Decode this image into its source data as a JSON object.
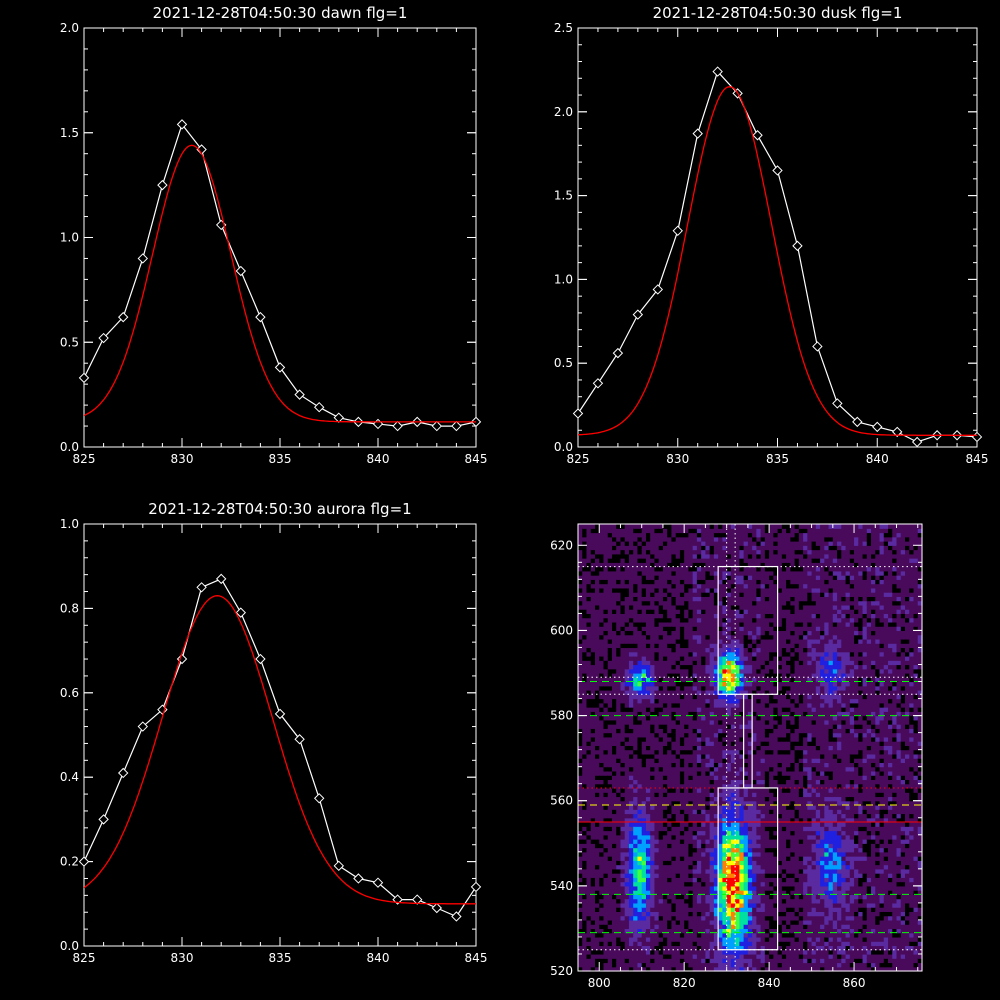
{
  "chart_data": [
    {
      "type": "line",
      "title": "2021-12-28T04:50:30 dawn flg=1",
      "xlim": [
        825,
        845
      ],
      "ylim": [
        0,
        2.0
      ],
      "xticks": [
        825,
        830,
        835,
        840,
        845
      ],
      "xtick_labels": [
        "825",
        "830",
        "835",
        "840",
        "845"
      ],
      "yticks": [
        0,
        0.5,
        1.0,
        1.5,
        2.0
      ],
      "ytick_labels": [
        "0.0",
        "0.5",
        "1.0",
        "1.5",
        "2.0"
      ],
      "series": [
        {
          "color": "#ffffff",
          "marker": "diamond",
          "x": [
            825,
            826,
            827,
            828,
            829,
            830,
            831,
            832,
            833,
            834,
            835,
            836,
            837,
            838,
            839,
            840,
            841,
            842,
            843,
            844,
            845
          ],
          "y": [
            0.33,
            0.52,
            0.62,
            0.9,
            1.25,
            1.54,
            1.42,
            1.06,
            0.84,
            0.62,
            0.38,
            0.25,
            0.19,
            0.14,
            0.12,
            0.11,
            0.1,
            0.12,
            0.1,
            0.1,
            0.12
          ]
        },
        {
          "color": "#ff0000",
          "marker": "none",
          "fit": "gaussian",
          "params": {
            "amp": 1.32,
            "center": 830.5,
            "sigma": 2.0,
            "offset": 0.12
          }
        }
      ]
    },
    {
      "type": "line",
      "title": "2021-12-28T04:50:30 dusk flg=1",
      "xlim": [
        825,
        845
      ],
      "ylim": [
        0,
        2.5
      ],
      "xticks": [
        825,
        830,
        835,
        840,
        845
      ],
      "xtick_labels": [
        "825",
        "830",
        "835",
        "840",
        "845"
      ],
      "yticks": [
        0,
        0.5,
        1.0,
        1.5,
        2.0,
        2.5
      ],
      "ytick_labels": [
        "0.0",
        "0.5",
        "1.0",
        "1.5",
        "2.0",
        "2.5"
      ],
      "series": [
        {
          "color": "#ffffff",
          "marker": "diamond",
          "x": [
            825,
            826,
            827,
            828,
            829,
            830,
            831,
            832,
            833,
            834,
            835,
            836,
            837,
            838,
            839,
            840,
            841,
            842,
            843,
            844,
            845
          ],
          "y": [
            0.2,
            0.38,
            0.56,
            0.79,
            0.94,
            1.29,
            1.87,
            2.24,
            2.11,
            1.86,
            1.65,
            1.2,
            0.6,
            0.26,
            0.15,
            0.12,
            0.09,
            0.03,
            0.07,
            0.07,
            0.06
          ]
        },
        {
          "color": "#ff0000",
          "marker": "none",
          "fit": "gaussian",
          "params": {
            "amp": 2.08,
            "center": 832.6,
            "sigma": 2.1,
            "offset": 0.07
          }
        }
      ]
    },
    {
      "type": "line",
      "title": "2021-12-28T04:50:30 aurora flg=1",
      "xlim": [
        825,
        845
      ],
      "ylim": [
        0,
        1.0
      ],
      "xticks": [
        825,
        830,
        835,
        840,
        845
      ],
      "xtick_labels": [
        "825",
        "830",
        "835",
        "840",
        "845"
      ],
      "yticks": [
        0,
        0.2,
        0.4,
        0.6,
        0.8,
        1.0
      ],
      "ytick_labels": [
        "0.0",
        "0.2",
        "0.4",
        "0.6",
        "0.8",
        "1.0"
      ],
      "series": [
        {
          "color": "#ffffff",
          "marker": "diamond",
          "x": [
            825,
            826,
            827,
            828,
            829,
            830,
            831,
            832,
            833,
            834,
            835,
            836,
            837,
            838,
            839,
            840,
            841,
            842,
            843,
            844,
            845
          ],
          "y": [
            0.2,
            0.3,
            0.41,
            0.52,
            0.56,
            0.68,
            0.85,
            0.87,
            0.79,
            0.68,
            0.55,
            0.49,
            0.35,
            0.19,
            0.16,
            0.15,
            0.11,
            0.11,
            0.09,
            0.07,
            0.14
          ]
        },
        {
          "color": "#ff0000",
          "marker": "none",
          "fit": "gaussian",
          "params": {
            "amp": 0.73,
            "center": 831.8,
            "sigma": 2.8,
            "offset": 0.1
          }
        }
      ]
    },
    {
      "type": "heatmap",
      "title": "",
      "xlim": [
        795,
        876
      ],
      "ylim": [
        520,
        625
      ],
      "xticks": [
        800,
        820,
        840,
        860
      ],
      "xtick_labels": [
        "800",
        "820",
        "840",
        "860"
      ],
      "yticks": [
        520,
        540,
        560,
        580,
        600,
        620
      ],
      "ytick_labels": [
        "520",
        "540",
        "560",
        "580",
        "600",
        "620"
      ],
      "colormap": [
        "#000000",
        "#4a0a5c",
        "#5a2aa0",
        "#2020e0",
        "#00a0ff",
        "#00e0a0",
        "#40ff40",
        "#ffff00",
        "#ff8000",
        "#ff0000"
      ],
      "blobs": [
        {
          "x": 809,
          "y": 588,
          "sx": 2.0,
          "sy": 2.5,
          "amp": 0.55
        },
        {
          "x": 830,
          "y": 589,
          "sx": 2.0,
          "sy": 3.5,
          "amp": 0.75
        },
        {
          "x": 854,
          "y": 590,
          "sx": 2.5,
          "sy": 4.0,
          "amp": 0.22
        },
        {
          "x": 809,
          "y": 543,
          "sx": 2.0,
          "sy": 9.0,
          "amp": 0.55
        },
        {
          "x": 831,
          "y": 540,
          "sx": 2.5,
          "sy": 10.0,
          "amp": 0.85
        },
        {
          "x": 854,
          "y": 545,
          "sx": 2.5,
          "sy": 7.0,
          "amp": 0.28
        }
      ],
      "boxes": [
        {
          "x0": 828,
          "x1": 842,
          "y0": 585,
          "y1": 615
        },
        {
          "x0": 834,
          "x1": 836,
          "y0": 563,
          "y1": 585
        },
        {
          "x0": 828,
          "x1": 842,
          "y0": 525,
          "y1": 563
        }
      ],
      "hlines": [
        {
          "y": 615,
          "color": "#ffffff",
          "style": "dotted"
        },
        {
          "y": 589,
          "color": "#ffffff",
          "style": "dotted"
        },
        {
          "y": 588,
          "color": "#00ff00",
          "style": "dashed"
        },
        {
          "y": 585,
          "color": "#ffffff",
          "style": "dotted"
        },
        {
          "y": 580,
          "color": "#00ff00",
          "style": "dashed"
        },
        {
          "y": 563,
          "color": "#ff0000",
          "style": "dotted"
        },
        {
          "y": 559,
          "color": "#ffff00",
          "style": "dashed"
        },
        {
          "y": 555,
          "color": "#ff0000",
          "style": "solid"
        },
        {
          "y": 538,
          "color": "#00ff00",
          "style": "dashed"
        },
        {
          "y": 529,
          "color": "#00ff00",
          "style": "dashed"
        },
        {
          "y": 525,
          "color": "#ffffff",
          "style": "dotted"
        }
      ],
      "vlines": [
        {
          "x": 830,
          "color": "#ffffff",
          "style": "dotted"
        },
        {
          "x": 832,
          "color": "#ffffff",
          "style": "dotted"
        }
      ]
    }
  ]
}
